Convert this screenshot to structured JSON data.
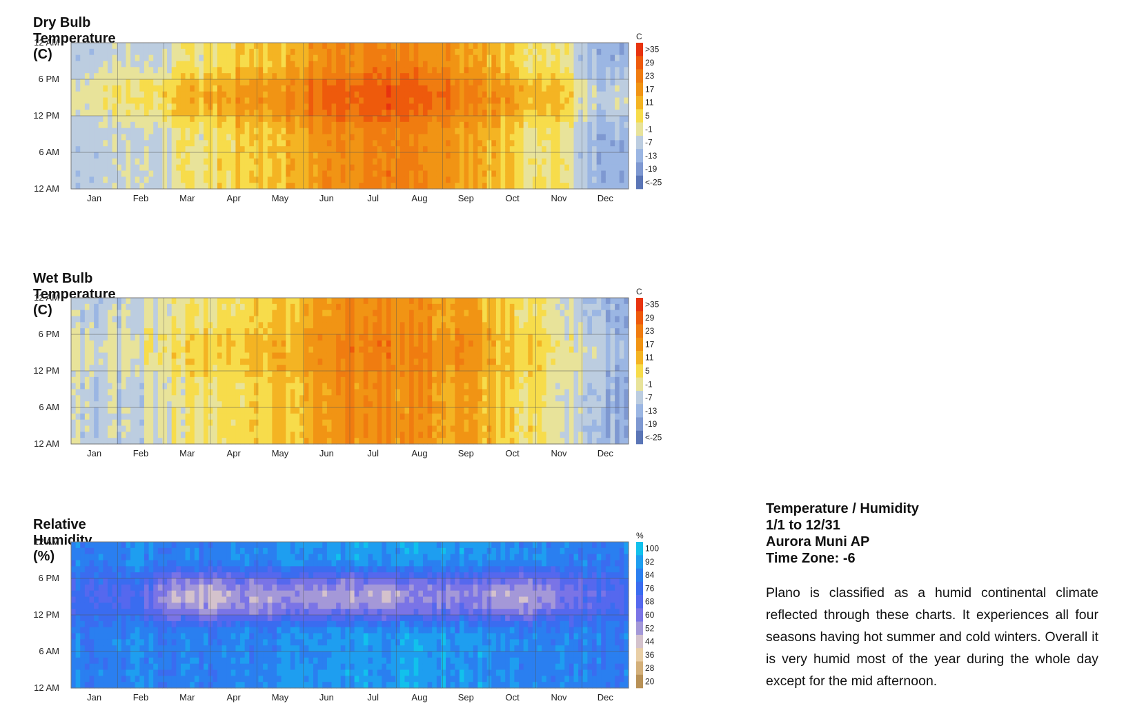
{
  "charts": [
    {
      "id": "dry",
      "title": "Dry Bulb Temperature (C)",
      "unit": "C",
      "legend_labels": [
        ">35",
        "29",
        "23",
        "17",
        "11",
        "5",
        "-1",
        "-7",
        "-13",
        "-19",
        "<-25"
      ],
      "legend_colors": [
        "#e8330f",
        "#ee5a0c",
        "#f07c10",
        "#f19414",
        "#f4b423",
        "#f7dc4b",
        "#e8e39a",
        "#bccde0",
        "#9bb6e3",
        "#7e98d1",
        "#5a75b6"
      ]
    },
    {
      "id": "wet",
      "title": "Wet Bulb Temperature (C)",
      "unit": "C",
      "legend_labels": [
        ">35",
        "29",
        "23",
        "17",
        "11",
        "5",
        "-1",
        "-7",
        "-13",
        "-19",
        "<-25"
      ],
      "legend_colors": [
        "#e8330f",
        "#ee5a0c",
        "#f07c10",
        "#f19414",
        "#f4b423",
        "#f7dc4b",
        "#e8e39a",
        "#bccde0",
        "#9bb6e3",
        "#7e98d1",
        "#5a75b6"
      ]
    },
    {
      "id": "rh",
      "title": "Relative Humidity (%)",
      "unit": "%",
      "legend_labels": [
        "100",
        "92",
        "84",
        "76",
        "68",
        "60",
        "52",
        "44",
        "36",
        "28",
        "20"
      ],
      "legend_colors": [
        "#12c1ec",
        "#1e9ef0",
        "#2a7ff0",
        "#3a6cf0",
        "#5568ee",
        "#7a74e6",
        "#a498d8",
        "#d4c2cc",
        "#e9cfa6",
        "#d4b07a",
        "#b89156"
      ]
    }
  ],
  "chart_data": [
    {
      "type": "heatmap",
      "title": "Dry Bulb Temperature (C)",
      "x_categories": [
        "Jan",
        "Feb",
        "Mar",
        "Apr",
        "May",
        "Jun",
        "Jul",
        "Aug",
        "Sep",
        "Oct",
        "Nov",
        "Dec"
      ],
      "y_ticks": [
        "12 AM",
        "6 PM",
        "12 PM",
        "6 AM",
        "12 AM"
      ],
      "colorbar_unit": "C",
      "colorbar_labels": [
        ">35",
        "29",
        "23",
        "17",
        "11",
        "5",
        "-1",
        "-7",
        "-13",
        "-19",
        "<-25"
      ],
      "monthly_afternoon_estimate": [
        -2,
        1,
        11,
        16,
        19,
        27,
        31,
        28,
        22,
        15,
        7,
        -8
      ],
      "monthly_night_estimate": [
        -9,
        -7,
        0,
        6,
        10,
        18,
        22,
        20,
        14,
        6,
        0,
        -15
      ]
    },
    {
      "type": "heatmap",
      "title": "Wet Bulb Temperature (C)",
      "x_categories": [
        "Jan",
        "Feb",
        "Mar",
        "Apr",
        "May",
        "Jun",
        "Jul",
        "Aug",
        "Sep",
        "Oct",
        "Nov",
        "Dec"
      ],
      "y_ticks": [
        "12 AM",
        "6 PM",
        "12 PM",
        "6 AM",
        "12 AM"
      ],
      "colorbar_unit": "C",
      "colorbar_labels": [
        ">35",
        "29",
        "23",
        "17",
        "11",
        "5",
        "-1",
        "-7",
        "-13",
        "-19",
        "<-25"
      ],
      "monthly_afternoon_estimate": [
        -4,
        -2,
        5,
        8,
        11,
        20,
        22,
        21,
        17,
        8,
        3,
        -10
      ],
      "monthly_night_estimate": [
        -8,
        -6,
        0,
        4,
        7,
        17,
        19,
        18,
        14,
        5,
        -1,
        -14
      ]
    },
    {
      "type": "heatmap",
      "title": "Relative Humidity (%)",
      "x_categories": [
        "Jan",
        "Feb",
        "Mar",
        "Apr",
        "May",
        "Jun",
        "Jul",
        "Aug",
        "Sep",
        "Oct",
        "Nov",
        "Dec"
      ],
      "y_ticks": [
        "12 AM",
        "6 PM",
        "12 PM",
        "6 AM",
        "12 AM"
      ],
      "colorbar_unit": "%",
      "colorbar_labels": [
        "100",
        "92",
        "84",
        "76",
        "68",
        "60",
        "52",
        "44",
        "36",
        "28",
        "20"
      ],
      "monthly_afternoon_estimate": [
        74,
        70,
        46,
        50,
        54,
        52,
        48,
        54,
        58,
        48,
        55,
        72
      ],
      "monthly_night_estimate": [
        84,
        86,
        84,
        84,
        88,
        90,
        90,
        92,
        90,
        86,
        84,
        84
      ]
    }
  ],
  "info": {
    "lines": [
      "Temperature / Humidity",
      "1/1 to 12/31",
      "Aurora Muni AP",
      "Time Zone: -6"
    ],
    "description": "Plano is classified as a humid continental climate reflected through these charts. It experiences all four seasons having hot summer and cold winters. Overall it is very humid most of the year during the whole day except for the mid afternoon."
  }
}
